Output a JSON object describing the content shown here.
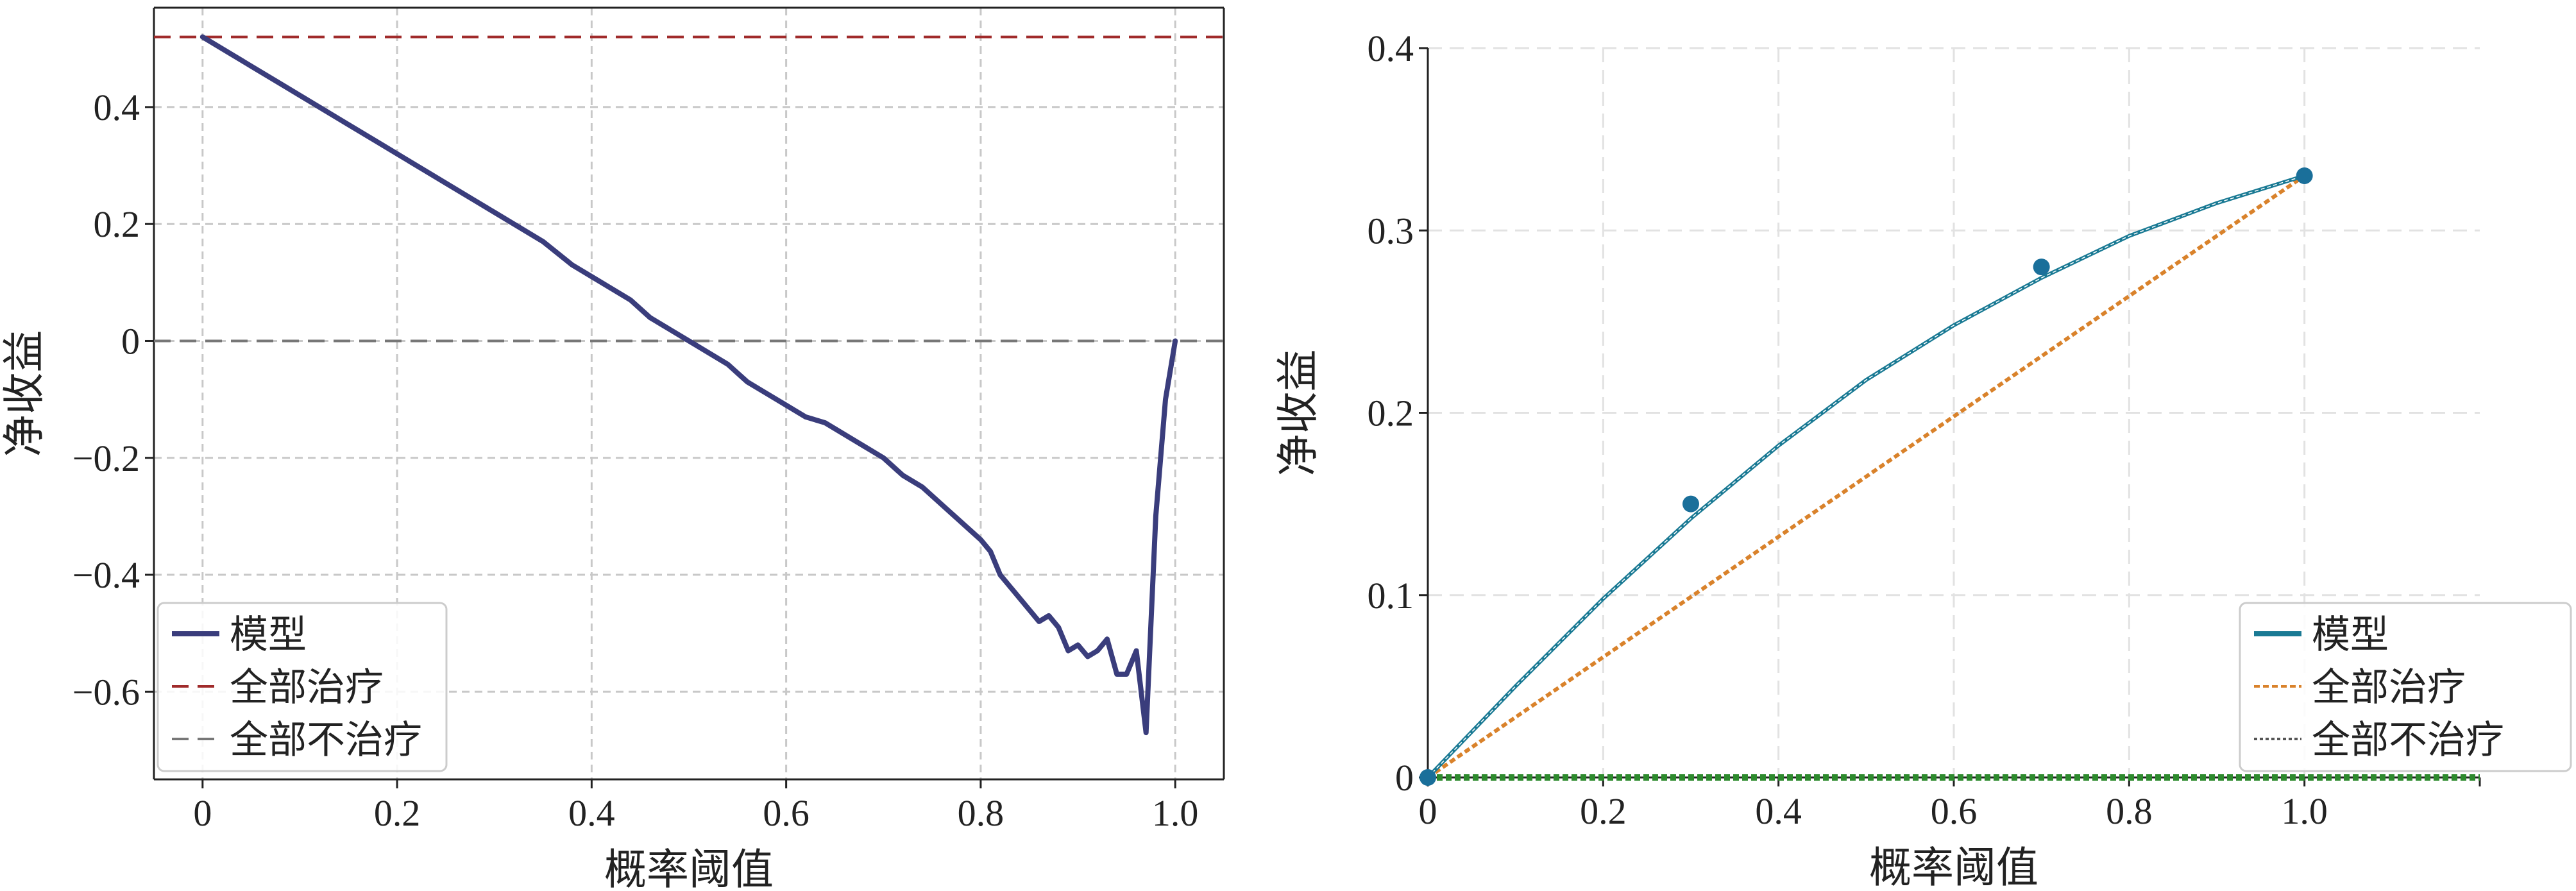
{
  "chart_data": [
    {
      "type": "line",
      "xlabel": "概率阈值",
      "ylabel": "净收益",
      "xlim": [
        -0.05,
        1.05
      ],
      "ylim": [
        -0.75,
        0.57
      ],
      "xticks": [
        0,
        0.2,
        0.4,
        0.6,
        0.8,
        1.0
      ],
      "xtick_labels": [
        "0",
        "0.2",
        "0.4",
        "0.6",
        "0.8",
        "1.0"
      ],
      "yticks": [
        -0.6,
        -0.4,
        -0.2,
        0,
        0.2,
        0.4
      ],
      "ytick_labels": [
        "−0.6",
        "−0.4",
        "−0.2",
        "0",
        "0.2",
        "0.4"
      ],
      "grid": true,
      "legend_position": "bottom-left",
      "series": [
        {
          "name": "模型",
          "color": "#3a3d7c",
          "style": "solid",
          "x": [
            0,
            0.02,
            0.05,
            0.08,
            0.1,
            0.13,
            0.15,
            0.18,
            0.2,
            0.23,
            0.25,
            0.28,
            0.3,
            0.33,
            0.35,
            0.38,
            0.4,
            0.42,
            0.44,
            0.46,
            0.48,
            0.5,
            0.52,
            0.54,
            0.56,
            0.58,
            0.6,
            0.62,
            0.64,
            0.66,
            0.68,
            0.7,
            0.72,
            0.74,
            0.76,
            0.78,
            0.8,
            0.81,
            0.82,
            0.83,
            0.84,
            0.85,
            0.86,
            0.87,
            0.88,
            0.89,
            0.9,
            0.91,
            0.92,
            0.93,
            0.94,
            0.95,
            0.96,
            0.97,
            0.98,
            0.99,
            1.0
          ],
          "y": [
            0.52,
            0.5,
            0.47,
            0.44,
            0.42,
            0.39,
            0.37,
            0.34,
            0.32,
            0.29,
            0.27,
            0.24,
            0.22,
            0.19,
            0.17,
            0.13,
            0.11,
            0.09,
            0.07,
            0.04,
            0.02,
            0.0,
            -0.02,
            -0.04,
            -0.07,
            -0.09,
            -0.11,
            -0.13,
            -0.14,
            -0.16,
            -0.18,
            -0.2,
            -0.23,
            -0.25,
            -0.28,
            -0.31,
            -0.34,
            -0.36,
            -0.4,
            -0.42,
            -0.44,
            -0.46,
            -0.48,
            -0.47,
            -0.49,
            -0.53,
            -0.52,
            -0.54,
            -0.53,
            -0.51,
            -0.57,
            -0.57,
            -0.53,
            -0.67,
            -0.3,
            -0.1,
            0.0
          ]
        },
        {
          "name": "全部治疗",
          "color": "#a02b2b",
          "style": "dashed",
          "x": [
            -0.05,
            1.05
          ],
          "y": [
            0.52,
            0.52
          ]
        },
        {
          "name": "全部不治疗",
          "color": "#777777",
          "style": "dashed",
          "x": [
            -0.05,
            1.05
          ],
          "y": [
            0,
            0
          ]
        }
      ]
    },
    {
      "type": "line",
      "xlabel": "概率阈值",
      "ylabel": "净收益",
      "xlim": [
        0,
        1.2
      ],
      "ylim": [
        0,
        0.4
      ],
      "xticks": [
        0,
        0.2,
        0.4,
        0.6,
        0.8,
        1.0
      ],
      "xtick_labels": [
        "0",
        "0.2",
        "0.4",
        "0.6",
        "0.8",
        "1.0"
      ],
      "yticks": [
        0,
        0.1,
        0.2,
        0.3,
        0.4
      ],
      "ytick_labels": [
        "0",
        "0.1",
        "0.2",
        "0.3",
        "0.4"
      ],
      "grid": true,
      "legend_position": "bottom-right",
      "series": [
        {
          "name": "模型",
          "color": "#1a7a94",
          "style": "solid",
          "x": [
            0,
            0.1,
            0.2,
            0.3,
            0.4,
            0.5,
            0.6,
            0.7,
            0.8,
            0.9,
            1.0
          ],
          "y": [
            0,
            0.05,
            0.098,
            0.142,
            0.182,
            0.218,
            0.248,
            0.274,
            0.297,
            0.315,
            0.33
          ]
        },
        {
          "name": "全部治疗",
          "color": "#d9822b",
          "style": "dotted",
          "x": [
            0,
            1.0
          ],
          "y": [
            0,
            0.33
          ]
        },
        {
          "name": "全部不治疗",
          "color": "#2d8a2d",
          "style": "dotted",
          "x": [
            0,
            1.2
          ],
          "y": [
            0,
            0
          ]
        }
      ],
      "points": {
        "color": "#1a6f9a",
        "x": [
          0,
          0.3,
          0.7,
          1.0
        ],
        "y": [
          0,
          0.15,
          0.28,
          0.33
        ]
      }
    }
  ]
}
